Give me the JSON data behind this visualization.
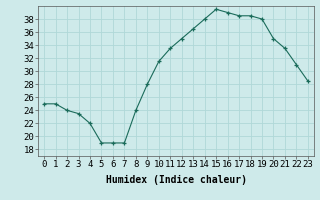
{
  "x": [
    0,
    1,
    2,
    3,
    4,
    5,
    6,
    7,
    8,
    9,
    10,
    11,
    12,
    13,
    14,
    15,
    16,
    17,
    18,
    19,
    20,
    21,
    22,
    23
  ],
  "y": [
    25,
    25,
    24,
    23.5,
    22,
    19,
    19,
    19,
    24,
    28,
    31.5,
    33.5,
    35,
    36.5,
    38,
    39.5,
    39,
    38.5,
    38.5,
    38,
    35,
    33.5,
    31,
    28.5
  ],
  "line_color": "#1a6b5a",
  "marker": "+",
  "marker_color": "#1a6b5a",
  "bg_color": "#ceeaea",
  "grid_color": "#b0d8d8",
  "xlabel": "Humidex (Indice chaleur)",
  "xlim": [
    -0.5,
    23.5
  ],
  "ylim": [
    17,
    40
  ],
  "yticks": [
    18,
    20,
    22,
    24,
    26,
    28,
    30,
    32,
    34,
    36,
    38
  ],
  "xticks": [
    0,
    1,
    2,
    3,
    4,
    5,
    6,
    7,
    8,
    9,
    10,
    11,
    12,
    13,
    14,
    15,
    16,
    17,
    18,
    19,
    20,
    21,
    22,
    23
  ],
  "label_fontsize": 7,
  "tick_fontsize": 6.5
}
